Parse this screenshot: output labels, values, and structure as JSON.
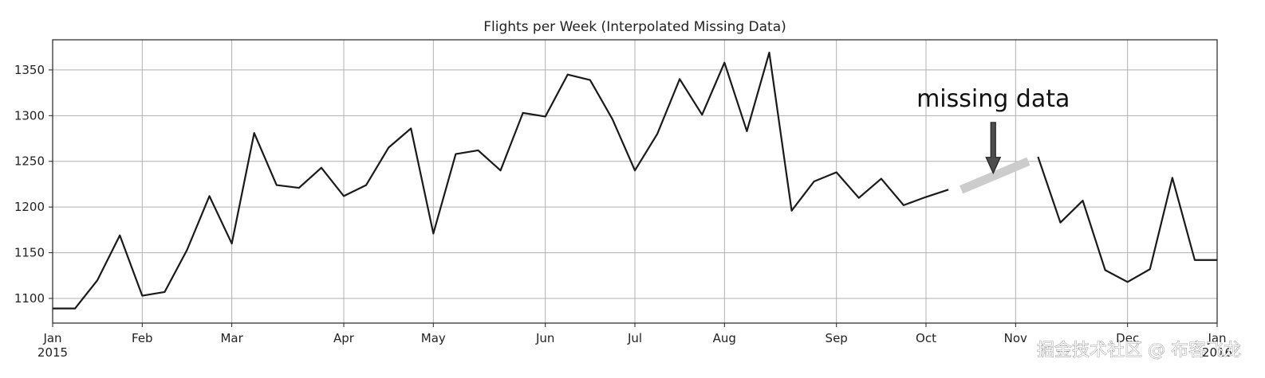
{
  "chart_data": {
    "type": "line",
    "title": "Flights per Week (Interpolated Missing Data)",
    "xlabel": "",
    "ylabel": "",
    "grid": true,
    "ylim": [
      1073,
      1383
    ],
    "xlim": [
      "2015-01-04",
      "2016-01-03"
    ],
    "yticks": [
      1100,
      1150,
      1200,
      1250,
      1300,
      1350
    ],
    "xticks": [
      {
        "date": "2015-01-04",
        "label": "Jan",
        "sublabel": "2015"
      },
      {
        "date": "2015-02-01",
        "label": "Feb"
      },
      {
        "date": "2015-03-01",
        "label": "Mar"
      },
      {
        "date": "2015-04-05",
        "label": "Apr"
      },
      {
        "date": "2015-05-03",
        "label": "May"
      },
      {
        "date": "2015-06-07",
        "label": "Jun"
      },
      {
        "date": "2015-07-05",
        "label": "Jul"
      },
      {
        "date": "2015-08-02",
        "label": "Aug"
      },
      {
        "date": "2015-09-06",
        "label": "Sep"
      },
      {
        "date": "2015-10-04",
        "label": "Oct"
      },
      {
        "date": "2015-11-01",
        "label": "Nov"
      },
      {
        "date": "2015-12-06",
        "label": "Dec"
      },
      {
        "date": "2016-01-03",
        "label": "Jan",
        "sublabel": "2016"
      }
    ],
    "series": [
      {
        "color": "#1a1a1a",
        "x": [
          "2015-01-04",
          "2015-01-11",
          "2015-01-18",
          "2015-01-25",
          "2015-02-01",
          "2015-02-08",
          "2015-02-15",
          "2015-02-22",
          "2015-03-01",
          "2015-03-08",
          "2015-03-15",
          "2015-03-22",
          "2015-03-29",
          "2015-04-05",
          "2015-04-12",
          "2015-04-19",
          "2015-04-26",
          "2015-05-03",
          "2015-05-10",
          "2015-05-17",
          "2015-05-24",
          "2015-05-31",
          "2015-06-07",
          "2015-06-14",
          "2015-06-21",
          "2015-06-28",
          "2015-07-05",
          "2015-07-12",
          "2015-07-19",
          "2015-07-26",
          "2015-08-02",
          "2015-08-09",
          "2015-08-16",
          "2015-08-23",
          "2015-08-30",
          "2015-09-06",
          "2015-09-13",
          "2015-09-20",
          "2015-09-27",
          "2015-10-04",
          "2015-10-11"
        ],
        "y": [
          1089,
          1089,
          1120,
          1169,
          1103,
          1107,
          1153,
          1212,
          1160,
          1281,
          1224,
          1221,
          1243,
          1212,
          1224,
          1265,
          1286,
          1171,
          1258,
          1262,
          1240,
          1303,
          1299,
          1345,
          1339,
          1296,
          1240,
          1280,
          1340,
          1301,
          1358,
          1283,
          1369,
          1196,
          1228,
          1238,
          1210,
          1231,
          1202,
          1211,
          1219
        ]
      },
      {
        "color": "#1a1a1a",
        "x": [
          "2015-11-08",
          "2015-11-15",
          "2015-11-22",
          "2015-11-29",
          "2015-12-06",
          "2015-12-13",
          "2015-12-20",
          "2015-12-27",
          "2016-01-03"
        ],
        "y": [
          1255,
          1183,
          1207,
          1131,
          1118,
          1132,
          1232,
          1142,
          1142
        ]
      }
    ],
    "interpolated": {
      "color": "#cccccc",
      "x": [
        "2015-10-15",
        "2015-11-05"
      ],
      "y": [
        1219,
        1250
      ]
    },
    "annotations": [
      {
        "text": "missing data",
        "x": "2015-10-25",
        "y": 1310,
        "arrow_to": {
          "x": "2015-10-25",
          "y": 1237
        },
        "arrow_color": "#4d4d4d"
      }
    ]
  },
  "watermark": "掘金技术社区 @ 布客飞龙"
}
